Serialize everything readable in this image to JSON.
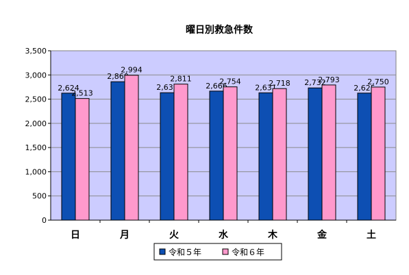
{
  "chart_data": {
    "type": "bar",
    "title": "曜日別救急件数",
    "xlabel": "",
    "ylabel": "",
    "categories": [
      "日",
      "月",
      "火",
      "水",
      "木",
      "金",
      "土"
    ],
    "series": [
      {
        "name": "令和５年",
        "color": "#0d4fb3",
        "values": [
          2624,
          2860,
          2633,
          2666,
          2631,
          2732,
          2625
        ]
      },
      {
        "name": "令和６年",
        "color": "#ff99cc",
        "values": [
          2513,
          2994,
          2811,
          2754,
          2718,
          2793,
          2750
        ]
      }
    ],
    "ylim": [
      0,
      3500
    ],
    "yticks": [
      0,
      500,
      1000,
      1500,
      2000,
      2500,
      3000,
      3500
    ],
    "ytick_labels": [
      "0",
      "500",
      "1,000",
      "1,500",
      "2,000",
      "2,500",
      "3,000",
      "3,500"
    ],
    "data_labels": [
      [
        "2,624",
        "2,860",
        "2,633",
        "2,666",
        "2,631",
        "2,732",
        "2,625"
      ],
      [
        "2,513",
        "2,994",
        "2,811",
        "2,754",
        "2,718",
        "2,793",
        "2,750"
      ]
    ],
    "grid": true,
    "plot_background": "#ccccff",
    "legend_position": "bottom"
  }
}
